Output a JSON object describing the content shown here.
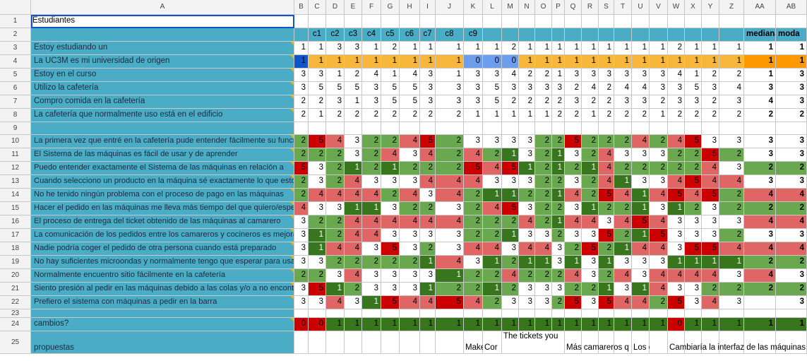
{
  "column_headers": [
    "A",
    "B",
    "C",
    "D",
    "E",
    "F",
    "G",
    "H",
    "I",
    "J",
    "K",
    "L",
    "M",
    "N",
    "O",
    "P",
    "Q",
    "R",
    "S",
    "T",
    "U",
    "V",
    "W",
    "X",
    "Y",
    "Z",
    "AA",
    "AB"
  ],
  "title_cell": "Estudiantes",
  "row2_headers": [
    "",
    "c1",
    "c2",
    "c3",
    "c4",
    "c5",
    "c6",
    "c7",
    "c8",
    "c9",
    "",
    "",
    "",
    "",
    "",
    "",
    "",
    "",
    "",
    "",
    "",
    "",
    "",
    "",
    "",
    "mediana",
    "moda"
  ],
  "questions": {
    "3": "Estoy estudiando un",
    "4": "La UC3M es mi universidad de origen",
    "5": "Estoy en el curso",
    "6": "Utilizo la cafetería",
    "7": "Compro comida en la cafetería",
    "8": "La cafetería que normalmente uso está en el edificio",
    "10": "La primera vez que entré en la cafetería pude entender fácilmente su funcionamiento",
    "11": "El Sistema de las máquinas es fácil de usar y de aprender",
    "12": "Puedo entender exactamente el Sistema de las máquinas en relación a",
    "13": "Cuando selecciono un producto en la máquina sé exactamente lo que estoy pidiendo",
    "14": "No he tenido ningún problema con el proceso de pago en las máquinas",
    "15": "Hacer el pedido en las máquinas me lleva más tiempo del que quiero/esperaba",
    "16": "El proceso de entrega del ticket obtenido de las máquinas al camarero",
    "17": "La comunicación de los pedidos entre los camareros y cocineros es mejorable",
    "18": "Nadie podría coger el pedido de otra persona cuando está preparado",
    "19": "No hay suficientes microondas y normalmente tengo que esperar para usarlos",
    "20": "Normalmente encuentro sitio fácilmente en la cafetería",
    "21": "Siento presión al pedir en las máquinas debido a las colas y/o a no encontrar",
    "22": "Prefiero el sistema con máquinas a pedir en la barra",
    "24": "cambios?",
    "25": "propuestas"
  },
  "values": {
    "3": [
      "1",
      "1",
      "3",
      "3",
      "1",
      "2",
      "1",
      "1",
      "1",
      "1",
      "1",
      "2",
      "1",
      "1",
      "1",
      "1",
      "1",
      "1",
      "1",
      "1",
      "1",
      "2",
      "1",
      "1",
      "1",
      "1",
      "1"
    ],
    "4": [
      "1",
      "1",
      "1",
      "1",
      "1",
      "1",
      "1",
      "1",
      "1",
      "0",
      "0",
      "0",
      "1",
      "1",
      "1",
      "1",
      "1",
      "1",
      "1",
      "1",
      "1",
      "1",
      "1",
      "1",
      "1",
      "1",
      "1"
    ],
    "5": [
      "3",
      "3",
      "1",
      "2",
      "4",
      "1",
      "4",
      "3",
      "1",
      "3",
      "3",
      "4",
      "2",
      "2",
      "1",
      "3",
      "3",
      "3",
      "3",
      "3",
      "3",
      "4",
      "1",
      "2",
      "2",
      "1",
      "3",
      "3"
    ],
    "6": [
      "3",
      "5",
      "5",
      "5",
      "3",
      "5",
      "5",
      "3",
      "3",
      "3",
      "5",
      "3",
      "3",
      "3",
      "3",
      "2",
      "4",
      "2",
      "4",
      "4",
      "3",
      "3",
      "5",
      "3",
      "4",
      "3",
      "3",
      "3"
    ],
    "7": [
      "2",
      "2",
      "3",
      "1",
      "3",
      "5",
      "5",
      "3",
      "3",
      "3",
      "5",
      "2",
      "2",
      "2",
      "2",
      "3",
      "2",
      "2",
      "3",
      "3",
      "2",
      "3",
      "3",
      "2",
      "3",
      "4",
      "3",
      "2"
    ],
    "8": [
      "2",
      "1",
      "2",
      "2",
      "2",
      "2",
      "2",
      "2",
      "2",
      "1",
      "1",
      "1",
      "1",
      "1",
      "2",
      "2",
      "1",
      "2",
      "2",
      "2",
      "1",
      "2",
      "2",
      "2",
      "2",
      "2",
      "2",
      "2"
    ],
    "10": [
      "2",
      "5",
      "4",
      "3",
      "2",
      "2",
      "4",
      "5",
      "2",
      "3",
      "3",
      "3",
      "3",
      "2",
      "2",
      "5",
      "2",
      "2",
      "2",
      "4",
      "2",
      "4",
      "5",
      "3",
      "3",
      "3",
      "3",
      "2"
    ],
    "11": [
      "2",
      "2",
      "2",
      "3",
      "2",
      "4",
      "3",
      "4",
      "2",
      "4",
      "2",
      "1",
      "3",
      "2",
      "1",
      "3",
      "2",
      "4",
      "3",
      "3",
      "3",
      "2",
      "2",
      "5",
      "2",
      "3",
      "3",
      "2"
    ],
    "12": [
      "5",
      "3",
      "2",
      "1",
      "2",
      "1",
      "2",
      "2",
      "2",
      "5",
      "4",
      "5",
      "1",
      "2",
      "1",
      "2",
      "1",
      "4",
      "2",
      "2",
      "2",
      "2",
      "2",
      "4",
      "3",
      "2",
      "2",
      "2"
    ],
    "13": [
      "2",
      "3",
      "2",
      "4",
      "3",
      "3",
      "3",
      "4",
      "4",
      "4",
      "3",
      "3",
      "3",
      "2",
      "2",
      "3",
      "2",
      "4",
      "1",
      "3",
      "3",
      "4",
      "5",
      "4",
      "4",
      "3",
      "3",
      "3"
    ],
    "14": [
      "2",
      "4",
      "4",
      "4",
      "4",
      "2",
      "4",
      "3",
      "4",
      "2",
      "1",
      "1",
      "2",
      "2",
      "1",
      "4",
      "2",
      "5",
      "4",
      "1",
      "4",
      "5",
      "4",
      "5",
      "2",
      "4",
      "4",
      "4"
    ],
    "15": [
      "4",
      "3",
      "3",
      "1",
      "1",
      "3",
      "2",
      "2",
      "3",
      "2",
      "4",
      "5",
      "3",
      "2",
      "2",
      "3",
      "1",
      "2",
      "2",
      "1",
      "3",
      "1",
      "2",
      "3",
      "2",
      "2",
      "2",
      "2"
    ],
    "16": [
      "3",
      "2",
      "2",
      "4",
      "4",
      "4",
      "4",
      "4",
      "4",
      "2",
      "2",
      "2",
      "4",
      "2",
      "1",
      "4",
      "4",
      "3",
      "4",
      "5",
      "4",
      "3",
      "3",
      "3",
      "3",
      "4",
      "4",
      "4"
    ],
    "17": [
      "3",
      "1",
      "2",
      "4",
      "4",
      "3",
      "3",
      "3",
      "3",
      "2",
      "2",
      "1",
      "3",
      "3",
      "2",
      "3",
      "3",
      "5",
      "2",
      "1",
      "5",
      "3",
      "3",
      "3",
      "2",
      "3",
      "3",
      "3"
    ],
    "18": [
      "3",
      "1",
      "4",
      "4",
      "3",
      "5",
      "3",
      "2",
      "3",
      "4",
      "4",
      "3",
      "4",
      "4",
      "3",
      "2",
      "5",
      "2",
      "1",
      "4",
      "4",
      "3",
      "5",
      "5",
      "4",
      "4",
      "4",
      "4"
    ],
    "19": [
      "3",
      "3",
      "2",
      "2",
      "2",
      "2",
      "2",
      "1",
      "4",
      "3",
      "1",
      "2",
      "1",
      "1",
      "3",
      "1",
      "3",
      "1",
      "3",
      "3",
      "3",
      "1",
      "1",
      "1",
      "1",
      "2",
      "2",
      "1"
    ],
    "20": [
      "2",
      "2",
      "3",
      "4",
      "3",
      "3",
      "3",
      "3",
      "1",
      "2",
      "2",
      "4",
      "2",
      "2",
      "2",
      "4",
      "3",
      "2",
      "4",
      "3",
      "4",
      "4",
      "4",
      "4",
      "3",
      "4",
      "3",
      "3"
    ],
    "21": [
      "3",
      "5",
      "1",
      "2",
      "3",
      "3",
      "3",
      "1",
      "2",
      "2",
      "1",
      "2",
      "3",
      "3",
      "3",
      "2",
      "2",
      "1",
      "3",
      "1",
      "4",
      "3",
      "3",
      "2",
      "2",
      "2",
      "2",
      "3"
    ],
    "22": [
      "3",
      "3",
      "4",
      "3",
      "1",
      "5",
      "4",
      "4",
      "5",
      "4",
      "2",
      "3",
      "3",
      "3",
      "2",
      "5",
      "3",
      "5",
      "4",
      "4",
      "2",
      "5",
      "3",
      "4",
      "3",
      "",
      "3",
      "3"
    ],
    "24": [
      "0",
      "0",
      "1",
      "1",
      "1",
      "1",
      "1",
      "1",
      "1",
      "1",
      "1",
      "1",
      "1",
      "1",
      "1",
      "1",
      "1",
      "1",
      "1",
      "1",
      "1",
      "0",
      "1",
      "1",
      "1",
      "1",
      "1",
      "1"
    ]
  },
  "proposals": {
    "K": "Make",
    "L": "Cor",
    "M": "The tickets you",
    "Q": "Más camareros q",
    "U": "Los cam",
    "W": "Cambiaría la interfaz de las máquinas"
  },
  "palette": {
    "header_bg": "#f3f3f3",
    "label_bg": "#4bacc6",
    "yellow": "#f6b73c",
    "orange": "#ff9900",
    "blue_selected": "#1155cc",
    "blue_light": "#6d9eeb",
    "dark_green": "#38761d",
    "green": "#6aa84f",
    "light_green": "#b6d7a8",
    "pink": "#e06666",
    "red": "#cc0000"
  }
}
